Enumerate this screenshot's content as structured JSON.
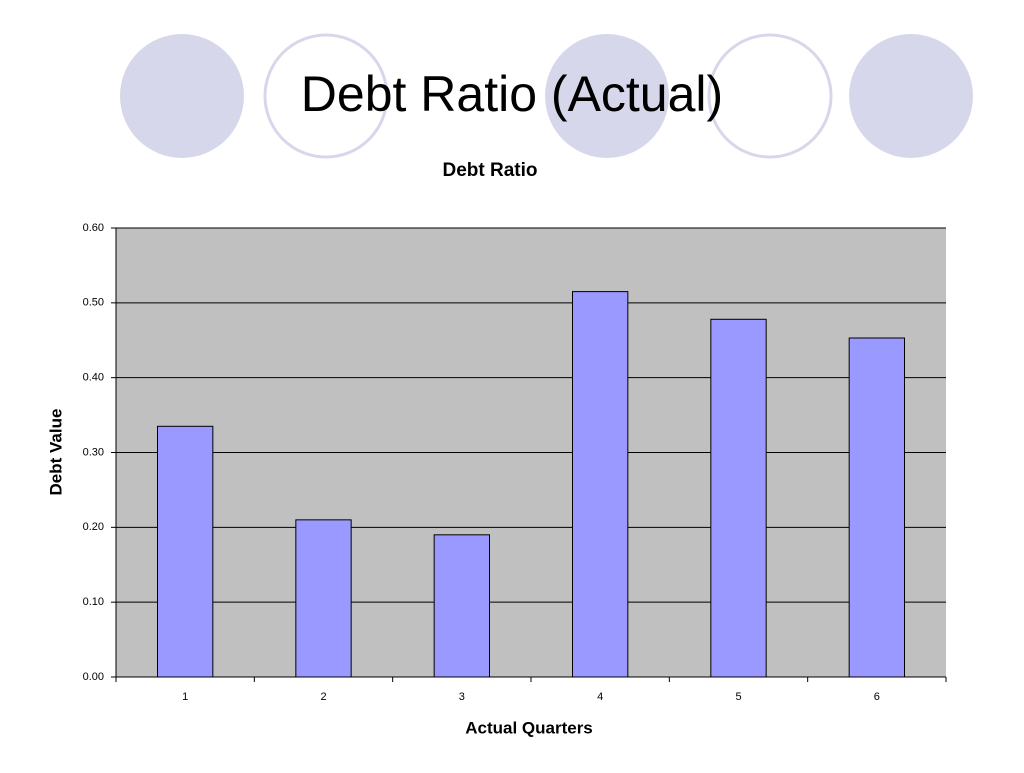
{
  "slide_title": "Debt Ratio (Actual)",
  "chart_data": {
    "type": "bar",
    "title": "Debt Ratio",
    "x_label": "Actual Quarters",
    "y_label": "Debt Value",
    "categories": [
      "1",
      "2",
      "3",
      "4",
      "5",
      "6"
    ],
    "values": [
      0.335,
      0.21,
      0.19,
      0.515,
      0.478,
      0.453
    ],
    "color": "#9999ff",
    "ylim": [
      0,
      0.6
    ],
    "yticks": [
      {
        "value": 0,
        "label": "0.00"
      },
      {
        "value": 0.1,
        "label": "0.10"
      },
      {
        "value": 0.2,
        "label": "0.20"
      },
      {
        "value": 0.3,
        "label": "0.30"
      },
      {
        "value": 0.4,
        "label": "0.40"
      },
      {
        "value": 0.5,
        "label": "0.50"
      },
      {
        "value": 0.6,
        "label": "0.60"
      }
    ],
    "grid": true
  }
}
